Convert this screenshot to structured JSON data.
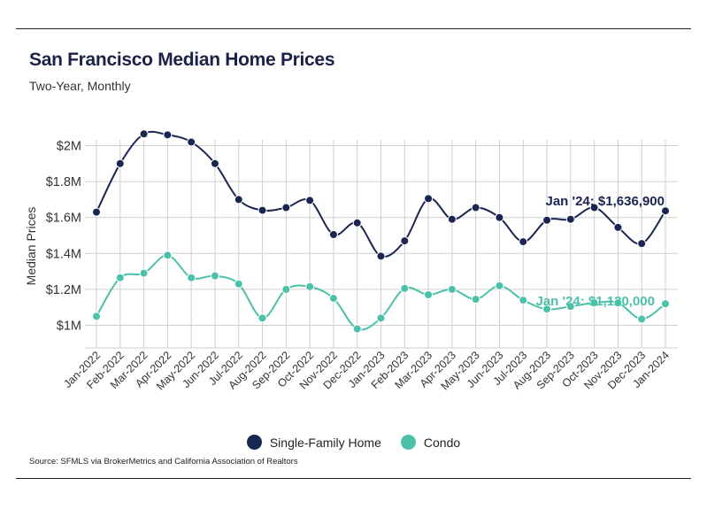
{
  "chart_data": {
    "type": "line",
    "title": "San Francisco Median Home Prices",
    "subtitle": "Two-Year, Monthly",
    "ylabel": "Median Prices",
    "xlabel": "",
    "ylim": [
      900000,
      2100000
    ],
    "yticks": [
      1000000,
      1200000,
      1400000,
      1600000,
      1800000,
      2000000
    ],
    "ytick_labels": [
      "$1M",
      "$1.2M",
      "$1.4M",
      "$1.6M",
      "$1.8M",
      "$2M"
    ],
    "grid": true,
    "legend_position": "bottom-center",
    "categories": [
      "Jan-2022",
      "Feb-2022",
      "Mar-2022",
      "Apr-2022",
      "May-2022",
      "Jun-2022",
      "Jul-2022",
      "Aug-2022",
      "Sep-2022",
      "Oct-2022",
      "Nov-2022",
      "Dec-2022",
      "Jan-2023",
      "Feb-2023",
      "Mar-2023",
      "Apr-2023",
      "May-2023",
      "Jun-2023",
      "Jul-2023",
      "Aug-2023",
      "Sep-2023",
      "Oct-2023",
      "Nov-2023",
      "Dec-2023",
      "Jan-2024"
    ],
    "series": [
      {
        "name": "Single-Family Home",
        "color": "#1b2552",
        "values": [
          1630000,
          1900000,
          2065000,
          2060000,
          2020000,
          1900000,
          1700000,
          1640000,
          1655000,
          1695000,
          1505000,
          1570000,
          1385000,
          1470000,
          1705000,
          1590000,
          1655000,
          1600000,
          1465000,
          1585000,
          1590000,
          1655000,
          1545000,
          1455000,
          1636900
        ],
        "annotation": "Jan '24: $1,636,900"
      },
      {
        "name": "Condo",
        "color": "#4cc1aa",
        "values": [
          1050000,
          1265000,
          1290000,
          1390000,
          1265000,
          1275000,
          1230000,
          1040000,
          1200000,
          1215000,
          1150000,
          980000,
          1040000,
          1205000,
          1170000,
          1200000,
          1145000,
          1220000,
          1140000,
          1090000,
          1105000,
          1125000,
          1125000,
          1035000,
          1120000
        ],
        "annotation": "Jan '24: $1,120,000"
      }
    ]
  },
  "source": "Source:  SFMLS via BrokerMetrics and California Association of Realtors",
  "legend": [
    {
      "label": "Single-Family Home",
      "color": "#1b2552"
    },
    {
      "label": "Condo",
      "color": "#4cc1aa"
    }
  ]
}
